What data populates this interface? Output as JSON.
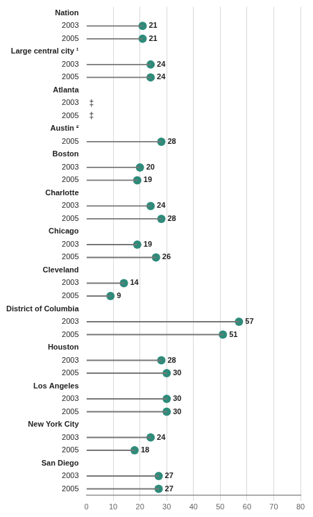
{
  "chart_data": {
    "type": "lollipop",
    "orientation": "horizontal",
    "categories": [
      "Nation",
      "2003",
      "2005",
      "Large central city ¹",
      "2003",
      "2005",
      "Atlanta",
      "2003",
      "2005",
      "Austin ²",
      "2005",
      "Boston",
      "2003",
      "2005",
      "Charlotte",
      "2003",
      "2005",
      "Chicago",
      "2003",
      "2005",
      "Cleveland",
      "2003",
      "2005",
      "District of Columbia",
      "2003",
      "2005",
      "Houston",
      "2003",
      "2005",
      "Los Angeles",
      "2003",
      "2005",
      "New York City",
      "2003",
      "2005",
      "San Diego",
      "2003",
      "2005"
    ],
    "values": [
      null,
      21,
      21,
      null,
      24,
      24,
      null,
      null,
      null,
      null,
      28,
      null,
      20,
      19,
      null,
      24,
      28,
      null,
      19,
      26,
      null,
      14,
      9,
      null,
      57,
      51,
      null,
      28,
      30,
      null,
      30,
      30,
      null,
      24,
      18,
      null,
      27,
      27
    ],
    "value_labels": [
      null,
      "21",
      "21",
      null,
      "24",
      "24",
      null,
      "‡",
      "‡",
      null,
      "28",
      null,
      "20",
      "19",
      null,
      "24",
      "28",
      null,
      "19",
      "26",
      null,
      "14",
      "9",
      null,
      "57",
      "51",
      null,
      "28",
      "30",
      null,
      "30",
      "30",
      null,
      "24",
      "18",
      null,
      "27",
      "27"
    ],
    "data_labels": true,
    "color": "#2e8b7a",
    "marker": "o",
    "xlim": [
      0,
      80
    ],
    "xticks": [
      0,
      10,
      20,
      30,
      40,
      50,
      60,
      70,
      80
    ],
    "grid": true
  }
}
